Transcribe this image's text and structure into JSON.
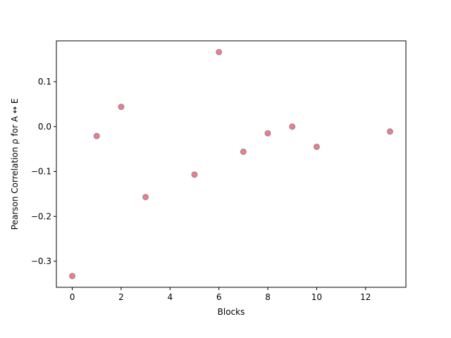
{
  "chart_data": {
    "type": "scatter",
    "title": "",
    "xlabel": "Blocks",
    "ylabel": "Pearson Correlation ρ for A ↔ E",
    "x": [
      0,
      1,
      2,
      3,
      5,
      6,
      7,
      8,
      9,
      10,
      13
    ],
    "y": [
      -0.333,
      -0.021,
      0.044,
      -0.157,
      -0.107,
      0.166,
      -0.056,
      -0.015,
      0.0,
      -0.045,
      -0.011
    ],
    "xlim": [
      -0.65,
      13.65
    ],
    "ylim": [
      -0.358,
      0.191
    ],
    "xticks": [
      0,
      2,
      4,
      6,
      8,
      10,
      12
    ],
    "xtick_labels": [
      "0",
      "2",
      "4",
      "6",
      "8",
      "10",
      "12"
    ],
    "yticks": [
      -0.3,
      -0.2,
      -0.1,
      0.0,
      0.1
    ],
    "ytick_labels": [
      "−0.3",
      "−0.2",
      "−0.1",
      "0.0",
      "0.1"
    ],
    "grid": false,
    "colors": {
      "marker_fill": "#f07b8a",
      "marker_edge": "#8c8c9c",
      "axis": "#000000"
    }
  }
}
